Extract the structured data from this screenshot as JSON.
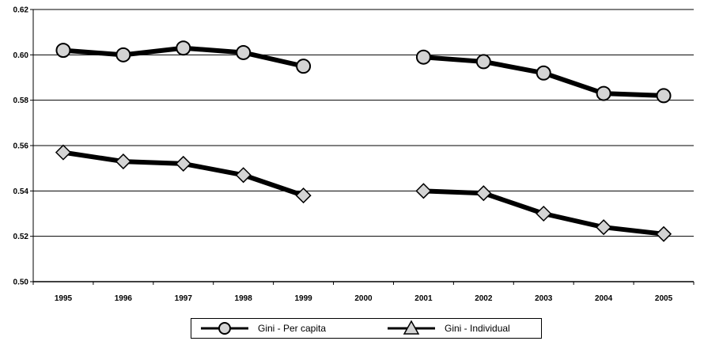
{
  "chart_data": {
    "type": "line",
    "categories": [
      "1995",
      "1996",
      "1997",
      "1998",
      "1999",
      "2000",
      "2001",
      "2002",
      "2003",
      "2004",
      "2005"
    ],
    "ylim": [
      0.5,
      0.62
    ],
    "yticks": [
      "0.50",
      "0.52",
      "0.54",
      "0.56",
      "0.58",
      "0.60",
      "0.62"
    ],
    "grid": true,
    "legend_position": "bottom",
    "series": [
      {
        "name": "Gini - Per capita",
        "marker": "circle",
        "values": [
          0.602,
          0.6,
          0.603,
          0.601,
          0.595,
          null,
          0.599,
          0.597,
          0.592,
          0.583,
          0.582
        ]
      },
      {
        "name": "Gini - Individual",
        "marker": "diamond",
        "values": [
          0.557,
          0.553,
          0.552,
          0.547,
          0.538,
          null,
          0.54,
          0.539,
          0.53,
          0.524,
          0.521
        ]
      }
    ],
    "line_color": "#000000",
    "marker_fill": "#d4d4d4"
  }
}
